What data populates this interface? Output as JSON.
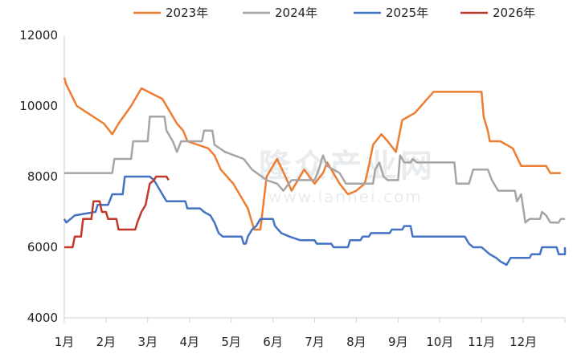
{
  "watermark": {
    "text": "隆众产业网",
    "subtext": "www.lanhei.com"
  },
  "chart_data": {
    "type": "line",
    "title": "",
    "xlabel": "",
    "ylabel": "",
    "ylim": [
      4000,
      12000
    ],
    "yticks": [
      4000,
      6000,
      8000,
      10000,
      12000
    ],
    "xlim": [
      0,
      12
    ],
    "x_ticks": [
      {
        "pos": 0,
        "label": "1月"
      },
      {
        "pos": 1,
        "label": "2月"
      },
      {
        "pos": 2,
        "label": "3月"
      },
      {
        "pos": 3,
        "label": "4月"
      },
      {
        "pos": 4,
        "label": "5月"
      },
      {
        "pos": 5,
        "label": "6月"
      },
      {
        "pos": 6,
        "label": "7月"
      },
      {
        "pos": 7,
        "label": "8月"
      },
      {
        "pos": 8,
        "label": "9月"
      },
      {
        "pos": 9,
        "label": "10月"
      },
      {
        "pos": 10,
        "label": "11月"
      },
      {
        "pos": 11,
        "label": "12月"
      }
    ],
    "legend_position": "top",
    "series": [
      {
        "name": "2023年",
        "color": "#ED7D31",
        "points": [
          [
            0,
            10800
          ],
          [
            0.05,
            10600
          ],
          [
            0.3,
            10000
          ],
          [
            0.95,
            9500
          ],
          [
            1.15,
            9200
          ],
          [
            1.3,
            9500
          ],
          [
            1.6,
            10000
          ],
          [
            1.85,
            10500
          ],
          [
            2.35,
            10200
          ],
          [
            2.55,
            9800
          ],
          [
            2.7,
            9500
          ],
          [
            2.85,
            9300
          ],
          [
            2.95,
            9000
          ],
          [
            3.45,
            8800
          ],
          [
            3.6,
            8600
          ],
          [
            3.75,
            8200
          ],
          [
            4.05,
            7800
          ],
          [
            4.25,
            7400
          ],
          [
            4.4,
            7100
          ],
          [
            4.55,
            6500
          ],
          [
            4.7,
            6500
          ],
          [
            4.85,
            8000
          ],
          [
            5.0,
            8300
          ],
          [
            5.1,
            8500
          ],
          [
            5.3,
            8000
          ],
          [
            5.45,
            7600
          ],
          [
            5.55,
            7800
          ],
          [
            5.75,
            8200
          ],
          [
            6.0,
            7800
          ],
          [
            6.2,
            8100
          ],
          [
            6.3,
            8400
          ],
          [
            6.4,
            8200
          ],
          [
            6.6,
            7800
          ],
          [
            6.8,
            7500
          ],
          [
            7.0,
            7600
          ],
          [
            7.2,
            7800
          ],
          [
            7.3,
            8300
          ],
          [
            7.4,
            8900
          ],
          [
            7.6,
            9200
          ],
          [
            7.75,
            9000
          ],
          [
            7.95,
            8700
          ],
          [
            8.1,
            9600
          ],
          [
            8.4,
            9800
          ],
          [
            8.7,
            10200
          ],
          [
            8.85,
            10400
          ],
          [
            9.0,
            10400
          ],
          [
            9.5,
            10400
          ],
          [
            10.0,
            10400
          ],
          [
            10.05,
            9700
          ],
          [
            10.15,
            9300
          ],
          [
            10.2,
            9000
          ],
          [
            10.45,
            9000
          ],
          [
            10.6,
            8900
          ],
          [
            10.75,
            8800
          ],
          [
            10.95,
            8300
          ],
          [
            11.55,
            8300
          ],
          [
            11.65,
            8100
          ],
          [
            11.9,
            8100
          ]
        ]
      },
      {
        "name": "2024年",
        "color": "#A5A5A5",
        "points": [
          [
            0,
            8100
          ],
          [
            1.15,
            8100
          ],
          [
            1.2,
            8500
          ],
          [
            1.6,
            8500
          ],
          [
            1.65,
            9000
          ],
          [
            2.0,
            9000
          ],
          [
            2.05,
            9700
          ],
          [
            2.4,
            9700
          ],
          [
            2.45,
            9300
          ],
          [
            2.6,
            9000
          ],
          [
            2.7,
            8700
          ],
          [
            2.8,
            9000
          ],
          [
            3.3,
            9000
          ],
          [
            3.35,
            9300
          ],
          [
            3.55,
            9300
          ],
          [
            3.6,
            8900
          ],
          [
            3.85,
            8700
          ],
          [
            4.3,
            8500
          ],
          [
            4.5,
            8200
          ],
          [
            4.85,
            7900
          ],
          [
            5.1,
            7800
          ],
          [
            5.25,
            7600
          ],
          [
            5.45,
            7900
          ],
          [
            6.0,
            7900
          ],
          [
            6.1,
            8200
          ],
          [
            6.2,
            8600
          ],
          [
            6.3,
            8300
          ],
          [
            6.6,
            8100
          ],
          [
            6.75,
            7800
          ],
          [
            7.4,
            7800
          ],
          [
            7.45,
            8200
          ],
          [
            7.55,
            8400
          ],
          [
            7.65,
            8000
          ],
          [
            7.75,
            7900
          ],
          [
            8.0,
            7900
          ],
          [
            8.05,
            8600
          ],
          [
            8.15,
            8400
          ],
          [
            8.3,
            8400
          ],
          [
            8.35,
            8500
          ],
          [
            8.45,
            8400
          ],
          [
            9.35,
            8400
          ],
          [
            9.4,
            7800
          ],
          [
            9.7,
            7800
          ],
          [
            9.8,
            8200
          ],
          [
            10.15,
            8200
          ],
          [
            10.25,
            7900
          ],
          [
            10.4,
            7600
          ],
          [
            10.8,
            7600
          ],
          [
            10.85,
            7300
          ],
          [
            10.95,
            7500
          ],
          [
            11.05,
            6700
          ],
          [
            11.15,
            6800
          ],
          [
            11.4,
            6800
          ],
          [
            11.45,
            7000
          ],
          [
            11.55,
            6900
          ],
          [
            11.65,
            6700
          ],
          [
            11.85,
            6700
          ],
          [
            11.9,
            6800
          ],
          [
            12.0,
            6800
          ]
        ]
      },
      {
        "name": "2025年",
        "color": "#4472C4",
        "points": [
          [
            0,
            6800
          ],
          [
            0.05,
            6700
          ],
          [
            0.25,
            6900
          ],
          [
            0.75,
            7000
          ],
          [
            0.8,
            7200
          ],
          [
            1.05,
            7200
          ],
          [
            1.15,
            7500
          ],
          [
            1.4,
            7500
          ],
          [
            1.45,
            8000
          ],
          [
            2.05,
            8000
          ],
          [
            2.15,
            7900
          ],
          [
            2.3,
            7600
          ],
          [
            2.45,
            7300
          ],
          [
            2.9,
            7300
          ],
          [
            2.95,
            7100
          ],
          [
            3.25,
            7100
          ],
          [
            3.35,
            7000
          ],
          [
            3.5,
            6900
          ],
          [
            3.6,
            6700
          ],
          [
            3.7,
            6400
          ],
          [
            3.8,
            6300
          ],
          [
            4.25,
            6300
          ],
          [
            4.3,
            6100
          ],
          [
            4.35,
            6100
          ],
          [
            4.4,
            6300
          ],
          [
            4.5,
            6500
          ],
          [
            4.6,
            6600
          ],
          [
            4.7,
            6800
          ],
          [
            5.0,
            6800
          ],
          [
            5.05,
            6600
          ],
          [
            5.2,
            6400
          ],
          [
            5.4,
            6300
          ],
          [
            5.65,
            6200
          ],
          [
            6.0,
            6200
          ],
          [
            6.05,
            6100
          ],
          [
            6.4,
            6100
          ],
          [
            6.45,
            6000
          ],
          [
            6.8,
            6000
          ],
          [
            6.85,
            6200
          ],
          [
            7.1,
            6200
          ],
          [
            7.15,
            6300
          ],
          [
            7.3,
            6300
          ],
          [
            7.35,
            6400
          ],
          [
            7.8,
            6400
          ],
          [
            7.85,
            6500
          ],
          [
            8.1,
            6500
          ],
          [
            8.15,
            6600
          ],
          [
            8.3,
            6600
          ],
          [
            8.35,
            6300
          ],
          [
            9.6,
            6300
          ],
          [
            9.7,
            6100
          ],
          [
            9.8,
            6000
          ],
          [
            10.0,
            6000
          ],
          [
            10.1,
            5900
          ],
          [
            10.2,
            5800
          ],
          [
            10.35,
            5700
          ],
          [
            10.45,
            5600
          ],
          [
            10.6,
            5500
          ],
          [
            10.7,
            5700
          ],
          [
            11.15,
            5700
          ],
          [
            11.2,
            5800
          ],
          [
            11.4,
            5800
          ],
          [
            11.45,
            6000
          ],
          [
            11.8,
            6000
          ],
          [
            11.85,
            5800
          ],
          [
            12.0,
            5800
          ],
          [
            12.0,
            6000
          ]
        ]
      },
      {
        "name": "2026年",
        "color": "#C0392B",
        "points": [
          [
            0,
            6000
          ],
          [
            0.2,
            6000
          ],
          [
            0.25,
            6300
          ],
          [
            0.4,
            6300
          ],
          [
            0.45,
            6800
          ],
          [
            0.65,
            6800
          ],
          [
            0.7,
            7300
          ],
          [
            0.85,
            7300
          ],
          [
            0.9,
            7000
          ],
          [
            1.0,
            7000
          ],
          [
            1.05,
            6800
          ],
          [
            1.25,
            6800
          ],
          [
            1.3,
            6500
          ],
          [
            1.7,
            6500
          ],
          [
            1.75,
            6700
          ],
          [
            1.85,
            7000
          ],
          [
            1.95,
            7200
          ],
          [
            2.0,
            7500
          ],
          [
            2.05,
            7800
          ],
          [
            2.15,
            7900
          ],
          [
            2.2,
            8000
          ],
          [
            2.45,
            8000
          ],
          [
            2.5,
            7900
          ]
        ]
      }
    ]
  }
}
